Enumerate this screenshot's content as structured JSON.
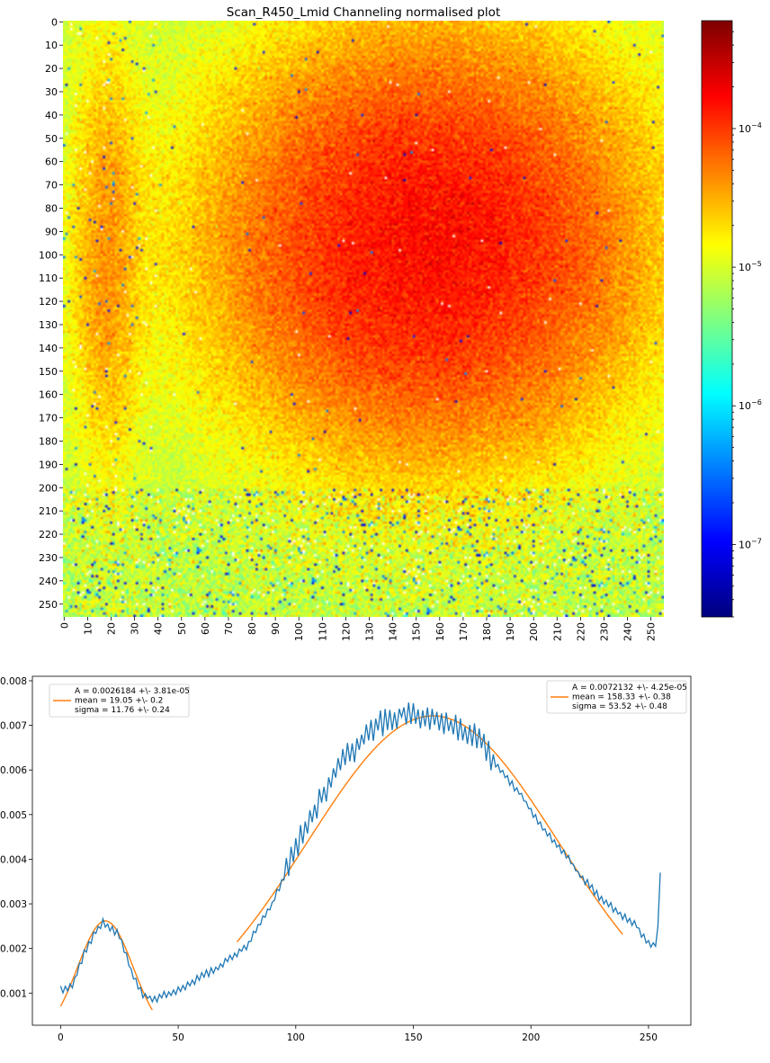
{
  "chart_data": [
    {
      "type": "heatmap",
      "title": "Scan_R450_Lmid Channeling normalised plot",
      "x_ticks": [
        0,
        10,
        20,
        30,
        40,
        50,
        60,
        70,
        80,
        90,
        100,
        110,
        120,
        130,
        140,
        150,
        160,
        170,
        180,
        190,
        200,
        210,
        220,
        230,
        240,
        250
      ],
      "y_ticks": [
        0,
        10,
        20,
        30,
        40,
        50,
        60,
        70,
        80,
        90,
        100,
        110,
        120,
        130,
        140,
        150,
        160,
        170,
        180,
        190,
        200,
        210,
        220,
        230,
        240,
        250
      ],
      "xlim": [
        0,
        256
      ],
      "ylim": [
        256,
        0
      ],
      "colormap": "jet",
      "color_scale": "log",
      "colorbar_range": [
        3e-08,
        0.0006
      ],
      "colorbar_ticks": [
        {
          "base": "10",
          "exp": "−4",
          "value": 0.0001
        },
        {
          "base": "10",
          "exp": "−5",
          "value": 1e-05
        },
        {
          "base": "10",
          "exp": "−6",
          "value": 1e-06
        },
        {
          "base": "10",
          "exp": "−7",
          "value": 1e-07
        }
      ],
      "features": [
        {
          "kind": "gaussian_blob",
          "cx": 155,
          "cy": 95,
          "sx": 48,
          "sy": 48,
          "peak": 0.00015
        },
        {
          "kind": "vertical_band",
          "cx": 18,
          "sx": 9,
          "y_center": 100,
          "y_sigma": 55,
          "peak": 3e-05
        }
      ],
      "background": 8e-06
    },
    {
      "type": "line",
      "xlim": [
        -12,
        268
      ],
      "ylim": [
        0.00028,
        0.0081
      ],
      "x_ticks": [
        0,
        50,
        100,
        150,
        200,
        250
      ],
      "y_ticks": [
        0.001,
        0.002,
        0.003,
        0.004,
        0.005,
        0.006,
        0.007,
        0.008
      ],
      "y_tick_labels": [
        "0.001",
        "0.002",
        "0.003",
        "0.004",
        "0.005",
        "0.006",
        "0.007",
        "0.008"
      ],
      "series": [
        {
          "color": "#1f77b4",
          "x": [
            0,
            5,
            10,
            15,
            18,
            20,
            25,
            30,
            35,
            38,
            40,
            45,
            50,
            55,
            60,
            65,
            70,
            75,
            80,
            85,
            90,
            95,
            100,
            105,
            110,
            115,
            120,
            125,
            130,
            135,
            140,
            145,
            150,
            155,
            160,
            165,
            170,
            175,
            180,
            185,
            190,
            195,
            200,
            205,
            210,
            215,
            220,
            225,
            230,
            235,
            240,
            245,
            250,
            253,
            254,
            255
          ],
          "y": [
            0.00108,
            0.00115,
            0.0019,
            0.0024,
            0.0026,
            0.0025,
            0.0023,
            0.0015,
            0.00095,
            0.0009,
            0.00085,
            0.00098,
            0.00105,
            0.0012,
            0.0014,
            0.0015,
            0.0017,
            0.0019,
            0.0021,
            0.0026,
            0.003,
            0.0036,
            0.0042,
            0.0048,
            0.0053,
            0.0058,
            0.0062,
            0.0065,
            0.0068,
            0.007,
            0.0071,
            0.0073,
            0.0072,
            0.0072,
            0.0071,
            0.007,
            0.0069,
            0.0068,
            0.0066,
            0.0061,
            0.0058,
            0.0055,
            0.0051,
            0.0047,
            0.0044,
            0.0041,
            0.0037,
            0.0034,
            0.0031,
            0.0029,
            0.0027,
            0.0025,
            0.0021,
            0.00205,
            0.0025,
            0.0037
          ]
        }
      ],
      "fits": [
        {
          "color": "#ff7f0e",
          "A": 0.0026184,
          "mean": 19.05,
          "sigma": 11.76,
          "x_range": [
            0,
            39
          ],
          "offset": 0.0
        },
        {
          "color": "#ff7f0e",
          "A": 0.0072132,
          "mean": 158.33,
          "sigma": 53.52,
          "x_range": [
            75,
            239
          ],
          "offset": 0.0
        }
      ],
      "legends": [
        {
          "position": "upper-left",
          "lines": [
            "A = 0.0026184 +\\- 3.81e-05",
            "mean = 19.05 +\\- 0.2",
            "sigma = 11.76 +\\- 0.24"
          ]
        },
        {
          "position": "upper-right",
          "lines": [
            "A = 0.0072132 +\\- 4.25e-05",
            "mean = 158.33 +\\- 0.38",
            "sigma = 53.52 +\\- 0.48"
          ]
        }
      ]
    }
  ]
}
